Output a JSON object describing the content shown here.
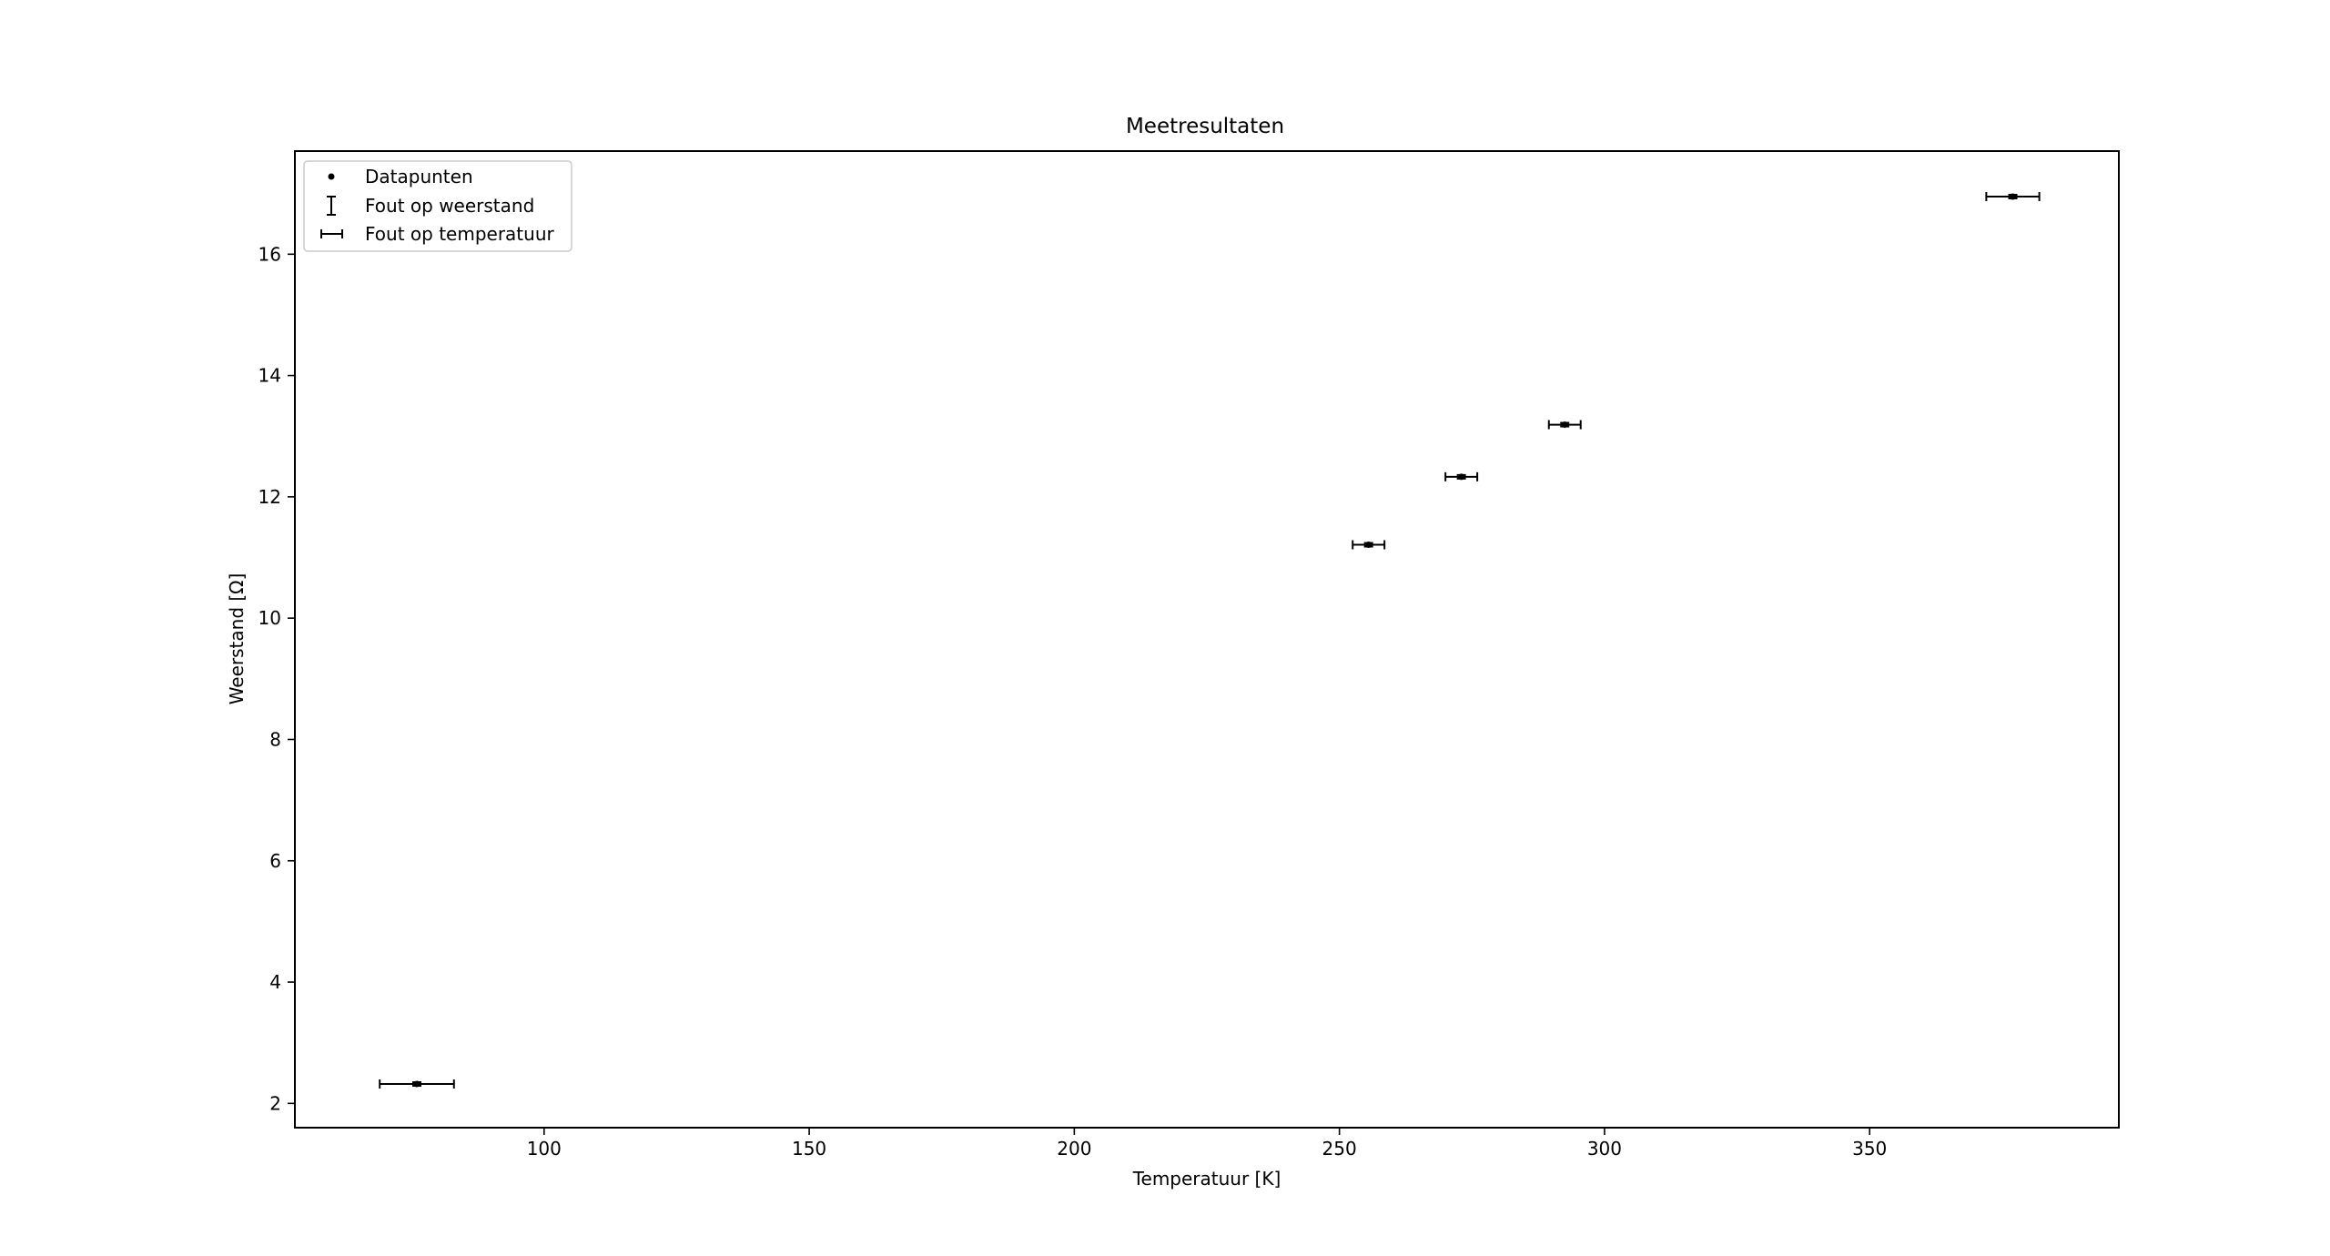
{
  "chart_data": {
    "type": "scatter",
    "title": "Meetresultaten",
    "xlabel": "Temperatuur [K]",
    "ylabel": "Weerstand [Ω]",
    "xlim": [
      53,
      397
    ],
    "ylim": [
      1.6,
      17.7
    ],
    "xticks": [
      100,
      150,
      200,
      250,
      300,
      350
    ],
    "yticks": [
      2,
      4,
      6,
      8,
      10,
      12,
      14,
      16
    ],
    "grid": false,
    "legend_position": "upper left",
    "legend": [
      {
        "label": "Datapunten",
        "marker": "point"
      },
      {
        "label": "Fout op weerstand",
        "marker": "vertical-errorbar"
      },
      {
        "label": "Fout op temperatuur",
        "marker": "horizontal-errorbar"
      }
    ],
    "points": [
      {
        "x": 76.0,
        "y": 2.32,
        "x_err": 7.0,
        "y_err": 0.03
      },
      {
        "x": 255.5,
        "y": 11.21,
        "x_err": 3.0,
        "y_err": 0.03
      },
      {
        "x": 273.0,
        "y": 12.33,
        "x_err": 3.0,
        "y_err": 0.03
      },
      {
        "x": 292.5,
        "y": 13.19,
        "x_err": 3.0,
        "y_err": 0.03
      },
      {
        "x": 377.0,
        "y": 16.95,
        "x_err": 5.0,
        "y_err": 0.03
      }
    ],
    "colors": {
      "marker": "#000000",
      "axes": "#000000",
      "background": "#ffffff"
    }
  }
}
